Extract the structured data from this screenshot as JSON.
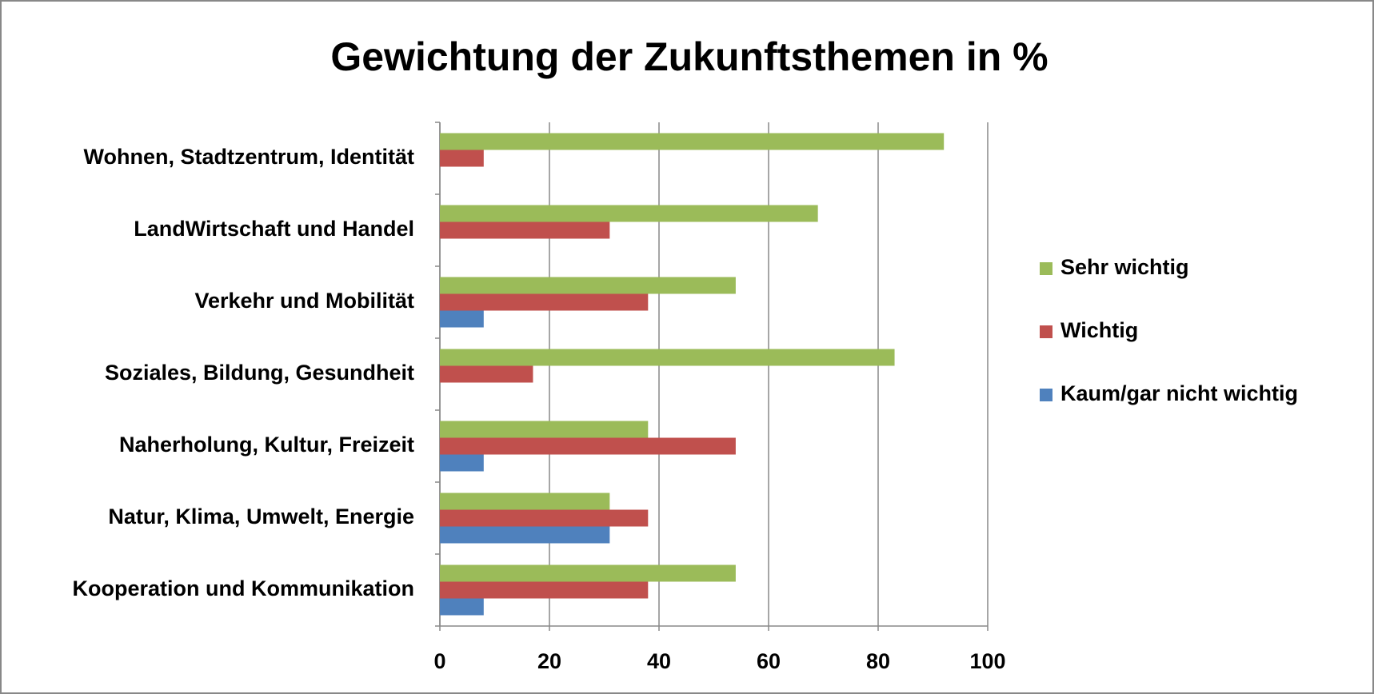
{
  "chart_data": {
    "type": "hbar",
    "title": "Gewichtung der Zukunftsthemen in %",
    "categories": [
      "Wohnen, Stadtzentrum, Identität",
      "LandWirtschaft und Handel",
      "Verkehr und Mobilität",
      "Soziales, Bildung, Gesundheit",
      "Naherholung, Kultur, Freizeit",
      "Natur, Klima, Umwelt, Energie",
      "Kooperation und Kommunikation"
    ],
    "series": [
      {
        "name": "Sehr wichtig",
        "color": "#9bbb59",
        "values": [
          92,
          69,
          54,
          83,
          38,
          31,
          54
        ]
      },
      {
        "name": "Wichtig",
        "color": "#c0504d",
        "values": [
          8,
          31,
          38,
          17,
          54,
          38,
          38
        ]
      },
      {
        "name": "Kaum/gar nicht wichtig",
        "color": "#4f81bd",
        "values": [
          0,
          0,
          8,
          0,
          8,
          31,
          8
        ]
      }
    ],
    "xlim": [
      0,
      100
    ],
    "xticks": [
      0,
      20,
      40,
      60,
      80,
      100
    ],
    "grid": true,
    "legend": "right"
  }
}
